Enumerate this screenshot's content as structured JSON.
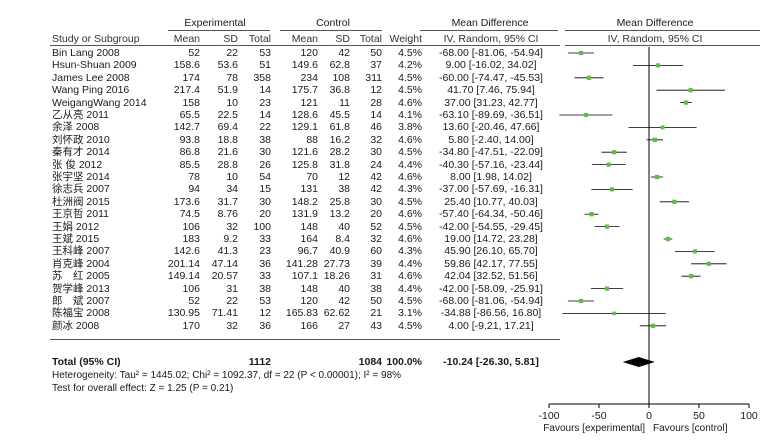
{
  "chart_data": {
    "type": "forest",
    "header": {
      "group_experimental": "Experimental",
      "group_control": "Control",
      "group_md": "Mean Difference",
      "group_md_plot": "Mean Difference",
      "study_col": "Study or Subgroup",
      "mean": "Mean",
      "sd": "SD",
      "total": "Total",
      "weight": "Weight",
      "md_method": "IV, Random, 95% CI",
      "plot_method": "IV, Random, 95% CI"
    },
    "studies": [
      {
        "name": "Bin Lang 2008",
        "e_mean": "52",
        "e_sd": "22",
        "e_total": "53",
        "c_mean": "120",
        "c_sd": "42",
        "c_total": "50",
        "weight": "4.5%",
        "ci": "-68.00 [-81.06, -54.94]",
        "md": -68.0,
        "lo": -81.06,
        "hi": -54.94
      },
      {
        "name": "Hsun-Shuan 2009",
        "e_mean": "158.6",
        "e_sd": "53.6",
        "e_total": "51",
        "c_mean": "149.6",
        "c_sd": "62.8",
        "c_total": "37",
        "weight": "4.2%",
        "ci": "9.00 [-16.02, 34.02]",
        "md": 9.0,
        "lo": -16.02,
        "hi": 34.02
      },
      {
        "name": "James Lee 2008",
        "e_mean": "174",
        "e_sd": "78",
        "e_total": "358",
        "c_mean": "234",
        "c_sd": "108",
        "c_total": "311",
        "weight": "4.5%",
        "ci": "-60.00 [-74.47, -45.53]",
        "md": -60.0,
        "lo": -74.47,
        "hi": -45.53
      },
      {
        "name": "Wang Ping 2016",
        "e_mean": "217.4",
        "e_sd": "51.9",
        "e_total": "14",
        "c_mean": "175.7",
        "c_sd": "36.8",
        "c_total": "12",
        "weight": "4.5%",
        "ci": "41.70 [7.46, 75.94]",
        "md": 41.7,
        "lo": 7.46,
        "hi": 75.94
      },
      {
        "name": "WeigangWang 2014",
        "e_mean": "158",
        "e_sd": "10",
        "e_total": "23",
        "c_mean": "121",
        "c_sd": "11",
        "c_total": "28",
        "weight": "4.6%",
        "ci": "37.00 [31.23, 42.77]",
        "md": 37.0,
        "lo": 31.23,
        "hi": 42.77
      },
      {
        "name": "乙从亮 2011",
        "e_mean": "65.5",
        "e_sd": "22.5",
        "e_total": "14",
        "c_mean": "128.6",
        "c_sd": "45.5",
        "c_total": "14",
        "weight": "4.1%",
        "ci": "-63.10 [-89.69, -36.51]",
        "md": -63.1,
        "lo": -89.69,
        "hi": -36.51
      },
      {
        "name": "余泽 2008",
        "e_mean": "142.7",
        "e_sd": "69.4",
        "e_total": "22",
        "c_mean": "129.1",
        "c_sd": "61.8",
        "c_total": "46",
        "weight": "3.8%",
        "ci": "13.60 [-20.46, 47.66]",
        "md": 13.6,
        "lo": -20.46,
        "hi": 47.66
      },
      {
        "name": "刘怀政 2010",
        "e_mean": "93.8",
        "e_sd": "18.8",
        "e_total": "38",
        "c_mean": "88",
        "c_sd": "16.2",
        "c_total": "32",
        "weight": "4.6%",
        "ci": "5.80 [-2.40, 14.00]",
        "md": 5.8,
        "lo": -2.4,
        "hi": 14.0
      },
      {
        "name": "秦有才 2014",
        "e_mean": "86.8",
        "e_sd": "21.6",
        "e_total": "30",
        "c_mean": "121.6",
        "c_sd": "28.2",
        "c_total": "30",
        "weight": "4.5%",
        "ci": "-34.80 [-47.51, -22.09]",
        "md": -34.8,
        "lo": -47.51,
        "hi": -22.09
      },
      {
        "name": "张 俊 2012",
        "e_mean": "85.5",
        "e_sd": "28.8",
        "e_total": "26",
        "c_mean": "125.8",
        "c_sd": "31.8",
        "c_total": "24",
        "weight": "4.4%",
        "ci": "-40.30 [-57.16, -23.44]",
        "md": -40.3,
        "lo": -57.16,
        "hi": -23.44
      },
      {
        "name": "张宇坚 2014",
        "e_mean": "78",
        "e_sd": "10",
        "e_total": "54",
        "c_mean": "70",
        "c_sd": "12",
        "c_total": "42",
        "weight": "4.6%",
        "ci": "8.00 [1.98, 14.02]",
        "md": 8.0,
        "lo": 1.98,
        "hi": 14.02
      },
      {
        "name": "徐志兵 2007",
        "e_mean": "94",
        "e_sd": "34",
        "e_total": "15",
        "c_mean": "131",
        "c_sd": "38",
        "c_total": "42",
        "weight": "4.3%",
        "ci": "-37.00 [-57.69, -16.31]",
        "md": -37.0,
        "lo": -57.69,
        "hi": -16.31
      },
      {
        "name": "杜洲阀 2015",
        "e_mean": "173.6",
        "e_sd": "31.7",
        "e_total": "30",
        "c_mean": "148.2",
        "c_sd": "25.8",
        "c_total": "30",
        "weight": "4.5%",
        "ci": "25.40 [10.77, 40.03]",
        "md": 25.4,
        "lo": 10.77,
        "hi": 40.03
      },
      {
        "name": "王京哲 2011",
        "e_mean": "74.5",
        "e_sd": "8.76",
        "e_total": "20",
        "c_mean": "131.9",
        "c_sd": "13.2",
        "c_total": "20",
        "weight": "4.6%",
        "ci": "-57.40 [-64.34, -50.46]",
        "md": -57.4,
        "lo": -64.34,
        "hi": -50.46
      },
      {
        "name": "王娟 2012",
        "e_mean": "106",
        "e_sd": "32",
        "e_total": "100",
        "c_mean": "148",
        "c_sd": "40",
        "c_total": "52",
        "weight": "4.5%",
        "ci": "-42.00 [-54.55, -29.45]",
        "md": -42.0,
        "lo": -54.55,
        "hi": -29.45
      },
      {
        "name": "王斌 2015",
        "e_mean": "183",
        "e_sd": "9.2",
        "e_total": "33",
        "c_mean": "164",
        "c_sd": "8.4",
        "c_total": "32",
        "weight": "4.6%",
        "ci": "19.00 [14.72, 23.28]",
        "md": 19.0,
        "lo": 14.72,
        "hi": 23.28
      },
      {
        "name": "王科峰 2007",
        "e_mean": "142.6",
        "e_sd": "41.3",
        "e_total": "23",
        "c_mean": "96.7",
        "c_sd": "40.9",
        "c_total": "60",
        "weight": "4.3%",
        "ci": "45.90 [26.10, 65.70]",
        "md": 45.9,
        "lo": 26.1,
        "hi": 65.7
      },
      {
        "name": "肖克峰 2004",
        "e_mean": "201.14",
        "e_sd": "47.14",
        "e_total": "36",
        "c_mean": "141.28",
        "c_sd": "27.73",
        "c_total": "39",
        "weight": "4.4%",
        "ci": "59.86 [42.17, 77.55]",
        "md": 59.86,
        "lo": 42.17,
        "hi": 77.55
      },
      {
        "name": "苏　红 2005",
        "e_mean": "149.14",
        "e_sd": "20.57",
        "e_total": "33",
        "c_mean": "107.1",
        "c_sd": "18.26",
        "c_total": "31",
        "weight": "4.6%",
        "ci": "42.04 [32.52, 51.56]",
        "md": 42.04,
        "lo": 32.52,
        "hi": 51.56
      },
      {
        "name": "贺学峰 2013",
        "e_mean": "106",
        "e_sd": "31",
        "e_total": "38",
        "c_mean": "148",
        "c_sd": "40",
        "c_total": "38",
        "weight": "4.4%",
        "ci": "-42.00 [-58.09, -25.91]",
        "md": -42.0,
        "lo": -58.09,
        "hi": -25.91
      },
      {
        "name": "郎　斌 2007",
        "e_mean": "52",
        "e_sd": "22",
        "e_total": "53",
        "c_mean": "120",
        "c_sd": "42",
        "c_total": "50",
        "weight": "4.5%",
        "ci": "-68.00 [-81.06, -54.94]",
        "md": -68.0,
        "lo": -81.06,
        "hi": -54.94
      },
      {
        "name": "陈福宝 2008",
        "e_mean": "130.95",
        "e_sd": "71.41",
        "e_total": "12",
        "c_mean": "165.83",
        "c_sd": "62.62",
        "c_total": "21",
        "weight": "3.1%",
        "ci": "-34.88 [-86.56, 16.80]",
        "md": -34.88,
        "lo": -86.56,
        "hi": 16.8
      },
      {
        "name": "颜冰 2008",
        "e_mean": "170",
        "e_sd": "32",
        "e_total": "36",
        "c_mean": "166",
        "c_sd": "27",
        "c_total": "43",
        "weight": "4.5%",
        "ci": "4.00 [-9.21, 17.21]",
        "md": 4.0,
        "lo": -9.21,
        "hi": 17.21
      }
    ],
    "total": {
      "label": "Total (95% CI)",
      "e_total": "1112",
      "c_total": "1084",
      "weight": "100.0%",
      "ci": "-10.24 [-26.30, 5.81]",
      "md": -10.24,
      "lo": -26.3,
      "hi": 5.81
    },
    "heterogeneity": "Heterogeneity: Tau² = 1445.02; Chi² = 1092.37, df = 22 (P < 0.00001); I² = 98%",
    "overall_effect": "Test for overall effect: Z = 1.25 (P = 0.21)",
    "x_axis": {
      "min": -100,
      "max": 100,
      "ticks": [
        -100,
        -50,
        0,
        50,
        100
      ],
      "tick_labels": [
        "-100",
        "-50",
        "0",
        "50",
        "100"
      ],
      "left_label": "Favours [experimental]",
      "right_label": "Favours [control]"
    },
    "colors": {
      "marker": "#5bbf3f",
      "diamond": "#000000",
      "line": "#000000"
    }
  }
}
